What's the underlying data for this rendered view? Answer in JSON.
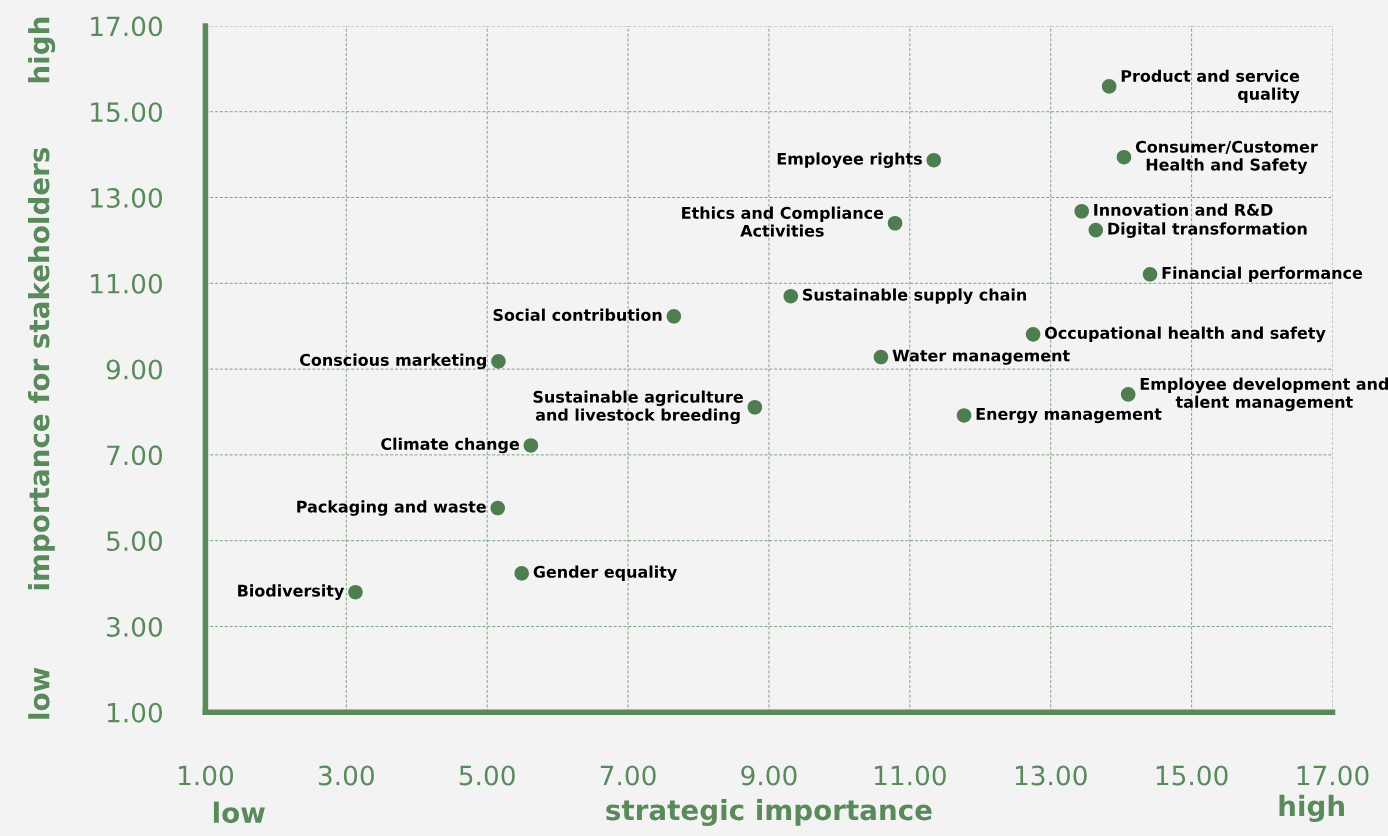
{
  "chart_data": {
    "type": "scatter",
    "xlabel": "strategic importance",
    "ylabel": "importance for stakeholders",
    "x": [
      13.83,
      11.34,
      14.04,
      10.79,
      13.44,
      13.64,
      14.41,
      9.31,
      7.65,
      12.75,
      10.59,
      5.16,
      14.1,
      8.8,
      11.77,
      5.62,
      5.15,
      5.49,
      3.13
    ],
    "values": [
      15.59,
      13.87,
      13.94,
      12.4,
      12.68,
      12.24,
      11.21,
      10.7,
      10.23,
      9.81,
      9.28,
      9.18,
      8.41,
      8.11,
      7.92,
      7.22,
      5.76,
      4.24,
      3.8
    ],
    "color": "#4e7d50",
    "marker": "circle",
    "grid": true,
    "legend": false,
    "xlim": [
      1,
      17
    ],
    "ylim": [
      1,
      17
    ],
    "xticks": [
      {
        "value": 1,
        "label": "1.00"
      },
      {
        "value": 3,
        "label": "3.00"
      },
      {
        "value": 5,
        "label": "5.00"
      },
      {
        "value": 7,
        "label": "7.00"
      },
      {
        "value": 9,
        "label": "9.00"
      },
      {
        "value": 11,
        "label": "11.00"
      },
      {
        "value": 13,
        "label": "13.00"
      },
      {
        "value": 15,
        "label": "15.00"
      },
      {
        "value": 17,
        "label": "17.00"
      }
    ],
    "yticks": [
      {
        "value": 1,
        "label": "1.00"
      },
      {
        "value": 3,
        "label": "3.00"
      },
      {
        "value": 5,
        "label": "5.00"
      },
      {
        "value": 7,
        "label": "7.00"
      },
      {
        "value": 9,
        "label": "9.00"
      },
      {
        "value": 11,
        "label": "11.00"
      },
      {
        "value": 13,
        "label": "13.00"
      },
      {
        "value": 15,
        "label": "15.00"
      },
      {
        "value": 17,
        "label": "17.00"
      }
    ],
    "annotations": [
      {
        "text": "Product and service\nquality",
        "x": 13.83,
        "y": 15.59
      },
      {
        "text": "Employee rights",
        "x": 11.34,
        "y": 13.87
      },
      {
        "text": "Consumer/Customer\nHealth and Safety",
        "x": 14.04,
        "y": 13.94
      },
      {
        "text": "Ethics and Compliance\nActivities",
        "x": 10.79,
        "y": 12.4
      },
      {
        "text": "Innovation and R&D",
        "x": 13.44,
        "y": 12.68
      },
      {
        "text": "Digital transformation",
        "x": 13.64,
        "y": 12.24
      },
      {
        "text": "Financial performance",
        "x": 14.41,
        "y": 11.21
      },
      {
        "text": "Sustainable supply chain",
        "x": 9.31,
        "y": 10.7
      },
      {
        "text": "Social contribution",
        "x": 7.65,
        "y": 10.23
      },
      {
        "text": "Occupational health and safety",
        "x": 12.75,
        "y": 9.81
      },
      {
        "text": "Water management",
        "x": 10.59,
        "y": 9.28
      },
      {
        "text": "Conscious marketing",
        "x": 5.16,
        "y": 9.18
      },
      {
        "text": "Employee development and\ntalent management",
        "x": 14.1,
        "y": 8.41
      },
      {
        "text": "Sustainable agriculture\nand livestock breeding",
        "x": 8.8,
        "y": 8.11
      },
      {
        "text": "Energy management",
        "x": 11.77,
        "y": 7.92
      },
      {
        "text": "Climate change",
        "x": 5.62,
        "y": 7.22
      },
      {
        "text": "Packaging and waste",
        "x": 5.15,
        "y": 5.76
      },
      {
        "text": "Gender equality",
        "x": 5.49,
        "y": 4.24
      },
      {
        "text": "Biodiversity",
        "x": 3.13,
        "y": 3.8
      },
      "high",
      "low",
      "low",
      "high"
    ]
  }
}
